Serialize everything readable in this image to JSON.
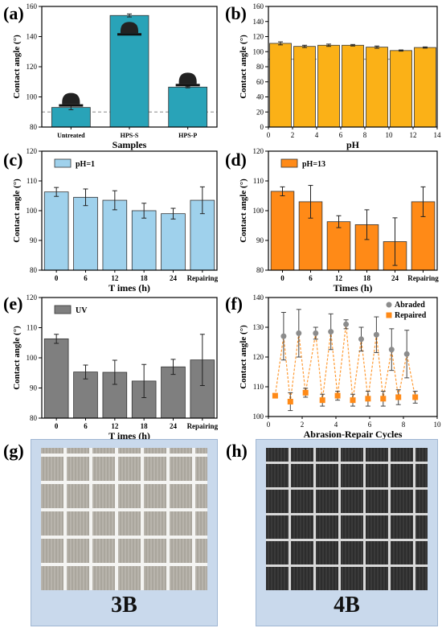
{
  "chart_data": [
    {
      "id": "a",
      "panel_label": "(a)",
      "type": "bar",
      "categories": [
        "Untreated",
        "HPS-S",
        "HPS-P"
      ],
      "values": [
        93,
        154,
        106.5
      ],
      "errors": [
        1.5,
        1,
        0.5
      ],
      "xlabel": "Samples",
      "ylabel": "Contact angle (°)",
      "ylim": [
        80,
        160
      ],
      "yticks": [
        80,
        100,
        120,
        140,
        160
      ],
      "reference_line": 90,
      "color": "#29a3b8"
    },
    {
      "id": "b",
      "panel_label": "(b)",
      "type": "bar",
      "x": [
        1,
        3,
        5,
        7,
        9,
        11,
        13
      ],
      "values": [
        111,
        107,
        108.5,
        108.5,
        106,
        101.5,
        105.5
      ],
      "errors": [
        2,
        1.5,
        1.5,
        1,
        1.5,
        0.8,
        0.8
      ],
      "xlabel": "pH",
      "ylabel": "Contact angle (°)",
      "xlim": [
        0,
        14
      ],
      "xticks": [
        0,
        2,
        4,
        6,
        8,
        10,
        12,
        14
      ],
      "ylim": [
        0,
        160
      ],
      "yticks": [
        0,
        20,
        40,
        60,
        80,
        100,
        120,
        140,
        160
      ],
      "reference_line": 90,
      "color": "#fbb117"
    },
    {
      "id": "c",
      "panel_label": "(c)",
      "type": "bar",
      "categories": [
        "0",
        "6",
        "12",
        "18",
        "24",
        "Repairing"
      ],
      "values": [
        106.3,
        104.5,
        103.5,
        100,
        99,
        103.5
      ],
      "errors": [
        1.5,
        2.8,
        3.2,
        2.5,
        1.8,
        4.5
      ],
      "xlabel": "T imes (h)",
      "ylabel": "Contact angle (°)",
      "ylim": [
        80,
        120
      ],
      "yticks": [
        80,
        90,
        100,
        110,
        120
      ],
      "legend": "pH=1",
      "color": "#9fd1ec"
    },
    {
      "id": "d",
      "panel_label": "(d)",
      "type": "bar",
      "categories": [
        "0",
        "6",
        "12",
        "18",
        "24",
        "Repairing"
      ],
      "values": [
        106.5,
        103,
        96.3,
        95.3,
        89.6,
        103
      ],
      "errors": [
        1.5,
        5.5,
        2,
        5,
        8,
        5
      ],
      "xlabel": "Times (h)",
      "ylabel": "Contact angle (°)",
      "ylim": [
        80,
        120
      ],
      "yticks": [
        80,
        90,
        100,
        110,
        120
      ],
      "legend": "pH=13",
      "color": "#ff8a17"
    },
    {
      "id": "e",
      "panel_label": "(e)",
      "type": "bar",
      "categories": [
        "0",
        "6",
        "12",
        "18",
        "24",
        "Repairing"
      ],
      "values": [
        106.3,
        95.3,
        95.2,
        92.3,
        97,
        99.3
      ],
      "errors": [
        1.5,
        2.3,
        4,
        5.5,
        2.5,
        8.5
      ],
      "xlabel": "T imes (h)",
      "ylabel": "Contact angle (°)",
      "ylim": [
        80,
        120
      ],
      "yticks": [
        80,
        90,
        100,
        110,
        120
      ],
      "legend": "UV",
      "color": "#7f7f7f"
    },
    {
      "id": "f",
      "panel_label": "(f)",
      "type": "scatter",
      "xlabel": "Abrasion-Repair Cycles",
      "ylabel": "Contact angle (°)",
      "xlim": [
        0,
        10
      ],
      "xticks": [
        0,
        2,
        4,
        6,
        8,
        10
      ],
      "ylim": [
        100,
        140
      ],
      "yticks": [
        100,
        110,
        120,
        130,
        140
      ],
      "series": [
        {
          "name": "Abraded",
          "color": "#8c8c8c",
          "marker": "circle",
          "x": [
            0.9,
            1.8,
            2.8,
            3.7,
            4.6,
            5.5,
            6.4,
            7.3,
            8.2
          ],
          "y": [
            127,
            128,
            128,
            128.5,
            131,
            126,
            127.5,
            122.5,
            121
          ],
          "errors": [
            8,
            8,
            2,
            6,
            1.5,
            4,
            6,
            7,
            8
          ]
        },
        {
          "name": "Repaired",
          "color": "#ff8a17",
          "marker": "square",
          "x": [
            0.4,
            1.3,
            2.2,
            3.2,
            4.1,
            5.0,
            5.9,
            6.8,
            7.7,
            8.7
          ],
          "y": [
            107,
            105,
            108,
            105.5,
            107,
            105.5,
            106,
            106,
            106.5,
            106.5
          ],
          "errors": [
            0.5,
            3,
            1.5,
            2,
            1.5,
            2,
            2.5,
            2.5,
            2.5,
            2
          ]
        }
      ]
    }
  ],
  "photos": [
    {
      "panel_label": "(g)",
      "caption": "3B",
      "tone": "light"
    },
    {
      "panel_label": "(h)",
      "caption": "4B",
      "tone": "dark"
    }
  ]
}
